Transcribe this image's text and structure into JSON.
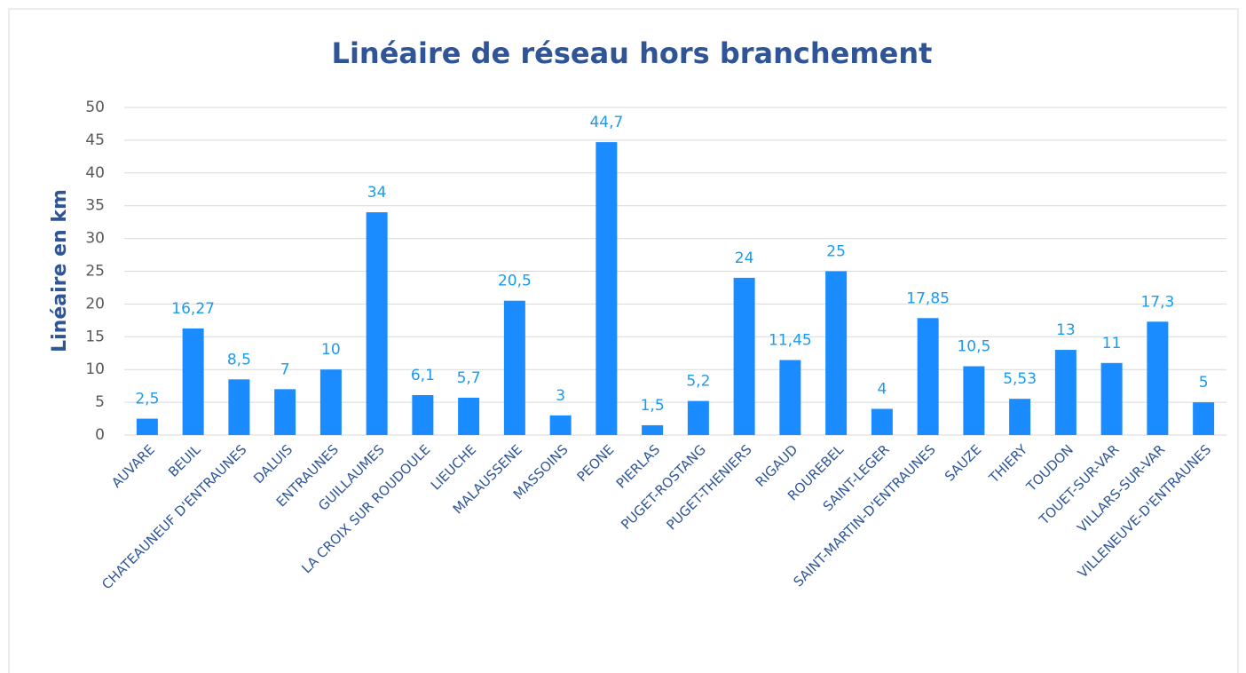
{
  "chart_data": {
    "type": "bar",
    "title": "Linéaire de réseau hors branchement",
    "y_label": "Linéaire en km",
    "categories": [
      "AUVARE",
      "BEUIL",
      "CHATEAUNEUF D'ENTRAUNES",
      "DALUIS",
      "ENTRAUNES",
      "GUILLAUMES",
      "LA CROIX SUR ROUDOULE",
      "LIEUCHE",
      "MALAUSSENE",
      "MASSOINS",
      "PEONE",
      "PIERLAS",
      "PUGET-ROSTANG",
      "PUGET-THENIERS",
      "RIGAUD",
      "ROUREBEL",
      "SAINT-LEGER",
      "SAINT-MARTIN-D'ENTRAUNES",
      "SAUZE",
      "THIERY",
      "TOUDON",
      "TOUET-SUR-VAR",
      "VILLARS-SUR-VAR",
      "VILLENEUVE-D'ENTRAUNES"
    ],
    "values": [
      2.5,
      16.27,
      8.5,
      7,
      10,
      34,
      6.1,
      5.7,
      20.5,
      3,
      44.7,
      1.5,
      5.2,
      24,
      11.45,
      25,
      4,
      17.85,
      10.5,
      5.53,
      13,
      11,
      17.3,
      5
    ],
    "value_labels": [
      "2,5",
      "16,27",
      "8,5",
      "7",
      "10",
      "34",
      "6,1",
      "5,7",
      "20,5",
      "3",
      "44,7",
      "1,5",
      "5,2",
      "24",
      "11,45",
      "25",
      "4",
      "17,85",
      "10,5",
      "5,53",
      "13",
      "11",
      "17,3",
      "5"
    ],
    "color": "#1a8cff",
    "ylim": [
      0,
      50
    ],
    "yticks": [
      0,
      5,
      10,
      15,
      20,
      25,
      30,
      35,
      40,
      45,
      50
    ],
    "grid": true
  }
}
